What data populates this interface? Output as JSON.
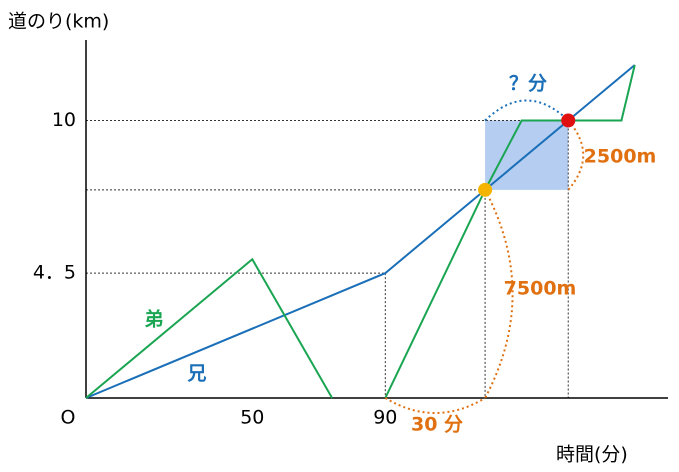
{
  "chart_data": {
    "type": "line",
    "xlabel": "時間(分)",
    "ylabel": "道のり(km)",
    "xlim": [
      0,
      175
    ],
    "ylim": [
      0,
      12.9
    ],
    "xticks": [
      {
        "value": 0,
        "label": "O"
      },
      50,
      90
    ],
    "yticks": [
      {
        "value": 4.5,
        "label": "4．5"
      },
      10
    ],
    "series": [
      {
        "name": "兄",
        "color": "#1a6fb8",
        "x": [
          0,
          90,
          120,
          145,
          165
        ],
        "values": [
          0,
          4.5,
          7.5,
          10,
          12
        ]
      },
      {
        "name": "弟",
        "color": "#1aa552",
        "x": [
          0,
          50,
          74,
          82,
          90,
          120,
          131,
          161,
          165
        ],
        "values": [
          0,
          5,
          0,
          null,
          0,
          7.5,
          10,
          10,
          12
        ]
      }
    ],
    "points": [
      {
        "x": 120,
        "y": 7.5,
        "color": "#f5b400"
      },
      {
        "x": 145,
        "y": 10,
        "color": "#e01010"
      }
    ],
    "annotations": [
      "？分",
      "2500m",
      "7500m",
      "30 分"
    ]
  }
}
